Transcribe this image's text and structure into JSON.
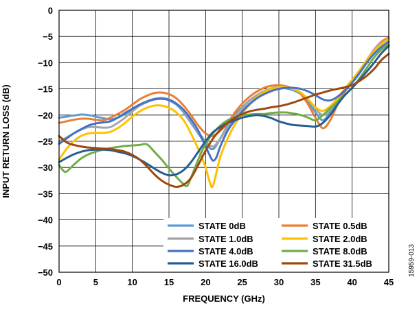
{
  "chart_data": {
    "type": "line",
    "xlabel": "FREQUENCY (GHz)",
    "ylabel": "INPUT RETURN LOSS (dB)",
    "xlim": [
      0,
      45
    ],
    "ylim": [
      -50,
      0
    ],
    "xticks": [
      0,
      5,
      10,
      15,
      20,
      25,
      30,
      35,
      40,
      45
    ],
    "yticks": [
      0,
      -5,
      -10,
      -15,
      -20,
      -25,
      -30,
      -35,
      -40,
      -45,
      -50
    ],
    "ytick_labels": [
      "0",
      "−5",
      "−10",
      "−15",
      "−20",
      "−25",
      "−30",
      "−35",
      "−40",
      "−45",
      "−50"
    ],
    "grid": true,
    "legend_position": "bottom-right",
    "figure_id": "15959-013",
    "series": [
      {
        "name": "STATE 0dB",
        "color": "#5B9BD5",
        "x": [
          0,
          1,
          2,
          3,
          4,
          5,
          6,
          7,
          8,
          9,
          10,
          11,
          12,
          13,
          14,
          15,
          16,
          17,
          18,
          19,
          20,
          21,
          22,
          23,
          24,
          25,
          26,
          27,
          28,
          29,
          30,
          31,
          32,
          33,
          34,
          35,
          36,
          37,
          38,
          39,
          40,
          41,
          42,
          43,
          44,
          45
        ],
        "y": [
          -20.5,
          -20.3,
          -20.1,
          -19.9,
          -20.0,
          -20.3,
          -20.6,
          -20.8,
          -20.5,
          -19.8,
          -19.0,
          -18.2,
          -17.5,
          -17.0,
          -16.8,
          -17.2,
          -18.0,
          -19.5,
          -21.5,
          -23.5,
          -25.5,
          -26.5,
          -24.5,
          -22.0,
          -20.0,
          -18.5,
          -17.2,
          -16.2,
          -15.5,
          -15.0,
          -14.8,
          -14.9,
          -15.3,
          -16.0,
          -17.5,
          -19.5,
          -21.0,
          -19.5,
          -17.5,
          -15.5,
          -13.8,
          -12.0,
          -10.0,
          -8.0,
          -6.5,
          -5.5
        ]
      },
      {
        "name": "STATE 0.5dB",
        "color": "#ED7D31",
        "x": [
          0,
          1,
          2,
          3,
          4,
          5,
          6,
          7,
          8,
          9,
          10,
          11,
          12,
          13,
          14,
          15,
          16,
          17,
          18,
          19,
          20,
          21,
          22,
          23,
          24,
          25,
          26,
          27,
          28,
          29,
          30,
          31,
          32,
          33,
          34,
          35,
          36,
          37,
          38,
          39,
          40,
          41,
          42,
          43,
          44,
          45
        ],
        "y": [
          -21.5,
          -21.2,
          -20.9,
          -20.7,
          -20.7,
          -20.9,
          -21.0,
          -20.5,
          -19.8,
          -19.0,
          -18.0,
          -17.0,
          -16.3,
          -15.8,
          -15.7,
          -16.0,
          -16.8,
          -18.2,
          -20.0,
          -22.0,
          -23.5,
          -24.0,
          -23.0,
          -21.5,
          -19.5,
          -17.8,
          -16.5,
          -15.5,
          -14.8,
          -14.4,
          -14.3,
          -14.5,
          -15.0,
          -16.0,
          -18.0,
          -20.5,
          -22.5,
          -21.0,
          -18.0,
          -15.5,
          -13.5,
          -11.5,
          -9.5,
          -7.5,
          -6.0,
          -5.2
        ]
      },
      {
        "name": "STATE 1.0dB",
        "color": "#A5A5A5",
        "x": [
          0,
          1,
          2,
          3,
          4,
          5,
          6,
          7,
          8,
          9,
          10,
          11,
          12,
          13,
          14,
          15,
          16,
          17,
          18,
          19,
          20,
          21,
          22,
          23,
          24,
          25,
          26,
          27,
          28,
          29,
          30,
          31,
          32,
          33,
          34,
          35,
          36,
          37,
          38,
          39,
          40,
          41,
          42,
          43,
          44,
          45
        ],
        "y": [
          -25.0,
          -24.3,
          -23.5,
          -22.8,
          -22.3,
          -22.3,
          -22.4,
          -22.3,
          -21.5,
          -20.5,
          -19.3,
          -18.2,
          -17.4,
          -16.9,
          -16.7,
          -17.0,
          -17.8,
          -19.3,
          -21.2,
          -23.2,
          -25.0,
          -26.0,
          -24.5,
          -22.3,
          -20.3,
          -18.7,
          -17.3,
          -16.2,
          -15.4,
          -14.9,
          -14.6,
          -14.7,
          -15.1,
          -15.8,
          -17.0,
          -18.8,
          -20.0,
          -19.0,
          -17.0,
          -15.0,
          -13.3,
          -11.5,
          -9.5,
          -7.5,
          -6.2,
          -5.5
        ]
      },
      {
        "name": "STATE 2.0dB",
        "color": "#FFC000",
        "x": [
          0,
          1,
          2,
          3,
          4,
          5,
          6,
          7,
          8,
          9,
          10,
          11,
          12,
          13,
          14,
          15,
          16,
          17,
          18,
          19,
          20,
          20.5,
          21,
          22,
          23,
          24,
          25,
          26,
          27,
          28,
          29,
          30,
          31,
          32,
          33,
          34,
          35,
          36,
          37,
          38,
          39,
          40,
          41,
          42,
          43,
          44,
          45
        ],
        "y": [
          -28.5,
          -26.5,
          -25.0,
          -24.0,
          -23.5,
          -23.4,
          -23.4,
          -23.2,
          -22.5,
          -21.5,
          -20.3,
          -19.3,
          -18.6,
          -18.2,
          -18.2,
          -18.6,
          -19.5,
          -21.0,
          -23.5,
          -26.5,
          -30.0,
          -32.5,
          -33.5,
          -28.0,
          -24.5,
          -21.8,
          -19.7,
          -18.0,
          -16.6,
          -15.6,
          -15.0,
          -14.7,
          -14.7,
          -15.0,
          -15.7,
          -17.0,
          -18.5,
          -19.2,
          -18.3,
          -16.8,
          -15.0,
          -13.3,
          -11.5,
          -9.5,
          -7.8,
          -6.5,
          -5.5
        ]
      },
      {
        "name": "STATE 4.0dB",
        "color": "#4472C4",
        "x": [
          0,
          1,
          2,
          3,
          4,
          5,
          6,
          7,
          8,
          9,
          10,
          11,
          12,
          13,
          14,
          15,
          16,
          17,
          18,
          19,
          20,
          20.5,
          21,
          21.5,
          22,
          23,
          24,
          25,
          26,
          27,
          28,
          29,
          30,
          31,
          32,
          33,
          34,
          35,
          36,
          37,
          38,
          39,
          40,
          41,
          42,
          43,
          44,
          45
        ],
        "y": [
          -25.5,
          -24.5,
          -23.5,
          -22.7,
          -22.0,
          -21.6,
          -21.4,
          -21.2,
          -20.5,
          -19.6,
          -18.8,
          -18.0,
          -17.4,
          -17.0,
          -16.9,
          -17.1,
          -17.8,
          -19.0,
          -20.8,
          -23.0,
          -26.0,
          -27.5,
          -28.7,
          -28.0,
          -26.0,
          -23.0,
          -21.0,
          -19.3,
          -17.9,
          -16.8,
          -16.0,
          -15.4,
          -15.0,
          -14.8,
          -14.8,
          -15.0,
          -15.5,
          -16.2,
          -17.0,
          -17.2,
          -16.5,
          -15.3,
          -13.8,
          -12.0,
          -10.0,
          -8.3,
          -7.0,
          -6.0
        ]
      },
      {
        "name": "STATE 8.0dB",
        "color": "#70AD47",
        "x": [
          0,
          0.5,
          1,
          2,
          3,
          4,
          5,
          6,
          7,
          8,
          9,
          10,
          11,
          12,
          13,
          14,
          15,
          16,
          17,
          17.5,
          18,
          19,
          20,
          21,
          22,
          23,
          24,
          25,
          26,
          27,
          28,
          29,
          30,
          31,
          32,
          33,
          34,
          35,
          36,
          37,
          38,
          39,
          40,
          41,
          42,
          43,
          44,
          45
        ],
        "y": [
          -29.5,
          -30.5,
          -30.8,
          -29.5,
          -28.3,
          -27.5,
          -27.0,
          -26.6,
          -26.3,
          -26.1,
          -25.9,
          -25.8,
          -25.7,
          -25.6,
          -27.0,
          -28.5,
          -30.2,
          -31.8,
          -33.2,
          -33.5,
          -32.0,
          -28.5,
          -25.5,
          -23.5,
          -22.0,
          -21.0,
          -20.4,
          -20.0,
          -19.9,
          -19.8,
          -19.8,
          -19.6,
          -19.5,
          -19.5,
          -19.7,
          -20.0,
          -20.5,
          -21.0,
          -20.0,
          -18.7,
          -17.5,
          -16.2,
          -14.8,
          -13.0,
          -11.0,
          -9.0,
          -7.5,
          -6.5
        ]
      },
      {
        "name": "STATE 16.0dB",
        "color": "#255E91",
        "x": [
          0,
          1,
          2,
          3,
          4,
          5,
          6,
          7,
          8,
          9,
          10,
          11,
          12,
          13,
          14,
          15,
          16,
          17,
          18,
          19,
          20,
          21,
          22,
          23,
          24,
          25,
          26,
          27,
          28,
          29,
          30,
          31,
          32,
          33,
          34,
          35,
          36,
          37,
          38,
          39,
          40,
          41,
          42,
          43,
          44,
          45
        ],
        "y": [
          -29.0,
          -28.2,
          -27.5,
          -27.0,
          -26.7,
          -26.6,
          -26.6,
          -26.7,
          -27.0,
          -27.3,
          -27.8,
          -28.5,
          -29.3,
          -30.2,
          -31.0,
          -31.5,
          -31.3,
          -30.5,
          -29.0,
          -27.0,
          -25.0,
          -23.3,
          -22.3,
          -21.5,
          -21.0,
          -20.5,
          -20.2,
          -20.0,
          -20.2,
          -20.6,
          -21.2,
          -21.6,
          -21.9,
          -22.0,
          -22.1,
          -22.2,
          -21.5,
          -20.0,
          -18.0,
          -16.2,
          -14.8,
          -13.3,
          -11.7,
          -10.0,
          -8.2,
          -6.8
        ]
      },
      {
        "name": "STATE 31.5dB",
        "color": "#9E480E",
        "x": [
          0,
          1,
          2,
          3,
          4,
          5,
          6,
          7,
          8,
          9,
          10,
          11,
          12,
          13,
          14,
          15,
          16,
          17,
          18,
          19,
          20,
          21,
          22,
          23,
          24,
          25,
          26,
          27,
          28,
          29,
          30,
          31,
          32,
          33,
          34,
          35,
          36,
          37,
          38,
          39,
          40,
          41,
          42,
          43,
          44,
          45
        ],
        "y": [
          -24.0,
          -25.2,
          -25.7,
          -26.0,
          -26.2,
          -26.3,
          -26.4,
          -26.5,
          -26.7,
          -27.0,
          -27.6,
          -28.5,
          -29.8,
          -31.3,
          -32.5,
          -33.3,
          -33.7,
          -33.3,
          -32.0,
          -29.5,
          -26.8,
          -24.5,
          -22.8,
          -21.5,
          -20.5,
          -19.8,
          -19.3,
          -19.0,
          -18.8,
          -18.5,
          -18.3,
          -18.0,
          -17.6,
          -17.1,
          -16.6,
          -16.1,
          -15.7,
          -15.3,
          -15.0,
          -14.7,
          -14.3,
          -13.5,
          -12.5,
          -11.2,
          -9.5,
          -8.3
        ]
      }
    ]
  }
}
